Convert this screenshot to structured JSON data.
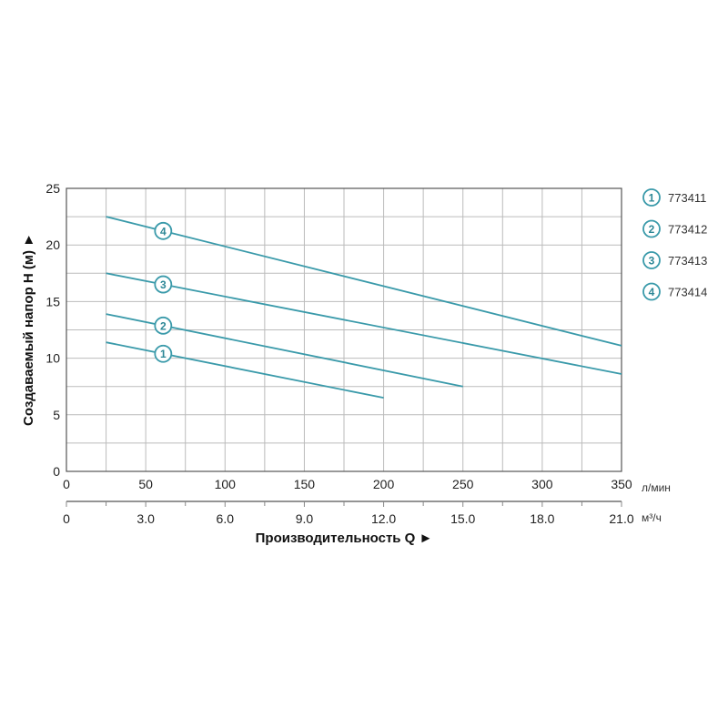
{
  "chart_data": {
    "type": "line",
    "xlabel": "Производительность Q ►",
    "ylabel": "Создаваемый напор H (м) ►",
    "x_unit": "л/мин",
    "x2_unit": "м³/ч",
    "xlim": [
      0,
      350
    ],
    "ylim": [
      0,
      25
    ],
    "x_ticks": [
      "0",
      "50",
      "100",
      "150",
      "200",
      "250",
      "300",
      "350"
    ],
    "x2_ticks": [
      "0",
      "3.0",
      "6.0",
      "9.0",
      "12.0",
      "15.0",
      "18.0",
      "21.0"
    ],
    "y_ticks": [
      "0",
      "5",
      "10",
      "15",
      "20",
      "25"
    ],
    "grid": true,
    "legend_position": "right",
    "color": "#3a9aaa",
    "series": [
      {
        "name": "773411",
        "marker": "1",
        "x": [
          25,
          200
        ],
        "y": [
          11.4,
          6.5
        ]
      },
      {
        "name": "773412",
        "marker": "2",
        "x": [
          25,
          250
        ],
        "y": [
          13.9,
          7.5
        ]
      },
      {
        "name": "773413",
        "marker": "3",
        "x": [
          25,
          350
        ],
        "y": [
          17.5,
          8.6
        ]
      },
      {
        "name": "773414",
        "marker": "4",
        "x": [
          25,
          350
        ],
        "y": [
          22.5,
          11.1
        ]
      }
    ]
  }
}
